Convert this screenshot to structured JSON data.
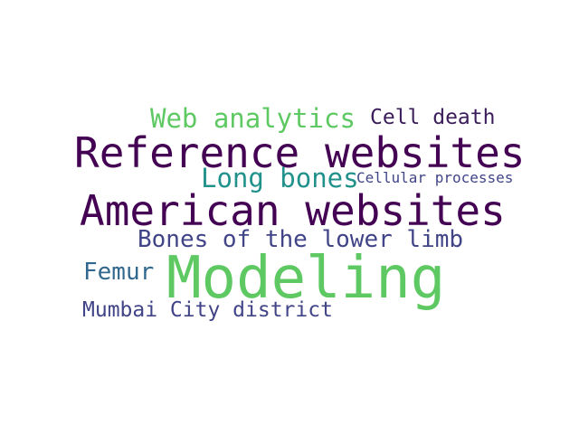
{
  "words": [
    {
      "text": "Modeling",
      "color": "#5ec962"
    },
    {
      "text": "American websites",
      "color": "#440154"
    },
    {
      "text": "Reference websites",
      "color": "#440154"
    },
    {
      "text": "Web analytics",
      "color": "#5ec962"
    },
    {
      "text": "Cell death",
      "color": "#3b1c5a"
    },
    {
      "text": "Long bones",
      "color": "#21918c"
    },
    {
      "text": "Cellular processes",
      "color": "#414487"
    },
    {
      "text": "Bones of the lower limb",
      "color": "#414487"
    },
    {
      "text": "Femur",
      "color": "#31688e"
    },
    {
      "text": "Mumbai City district",
      "color": "#414487"
    }
  ]
}
